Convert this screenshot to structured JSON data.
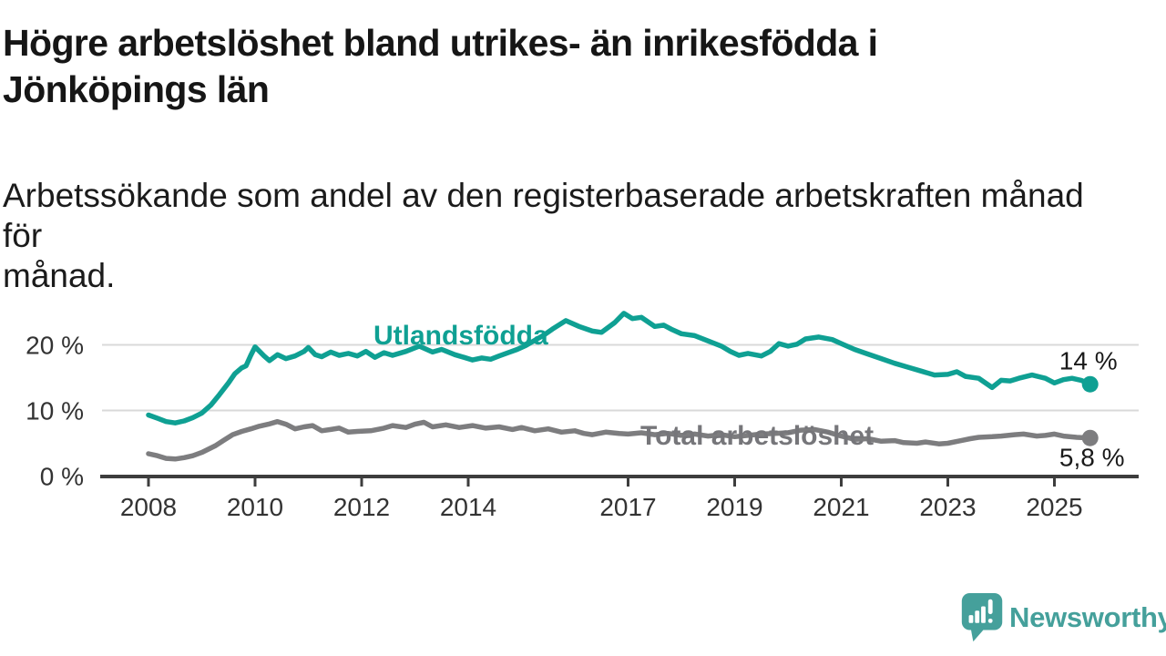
{
  "header": {
    "title_lines": [
      "Högre arbetslöshet bland utrikes- än inrikesfödda i",
      "Jönköpings län"
    ],
    "subtitle_lines": [
      "Arbetssökande som andel av den registerbaserade arbetskraften månad för",
      "månad."
    ]
  },
  "footer": {
    "brand": "Newsworthy",
    "brand_color": "#45a09b"
  },
  "chart_data": {
    "type": "line",
    "unit": "%",
    "grid": "horizontal",
    "x_axis": {
      "range": [
        2008,
        2025.67
      ],
      "ticks": [
        {
          "value": 2008,
          "label": "2008"
        },
        {
          "value": 2010,
          "label": "2010"
        },
        {
          "value": 2012,
          "label": "2012"
        },
        {
          "value": 2014,
          "label": "2014"
        },
        {
          "value": 2017,
          "label": "2017"
        },
        {
          "value": 2019,
          "label": "2019"
        },
        {
          "value": 2021,
          "label": "2021"
        },
        {
          "value": 2023,
          "label": "2023"
        },
        {
          "value": 2025,
          "label": "2025"
        }
      ]
    },
    "y_axis": {
      "range": [
        0,
        26
      ],
      "ticks": [
        {
          "value": 0,
          "label": "0 %"
        },
        {
          "value": 10,
          "label": "10 %"
        },
        {
          "value": 20,
          "label": "20 %"
        }
      ]
    },
    "series": [
      {
        "id": "utlandsfodda",
        "name": "Utlandsfödda",
        "color": "#0fa093",
        "end_value": 14.0,
        "end_label": "14 %",
        "end_label_position": "above",
        "points": [
          [
            2008.0,
            9.3
          ],
          [
            2008.17,
            8.8
          ],
          [
            2008.33,
            8.3
          ],
          [
            2008.5,
            8.1
          ],
          [
            2008.67,
            8.4
          ],
          [
            2008.83,
            8.9
          ],
          [
            2009.0,
            9.6
          ],
          [
            2009.17,
            10.8
          ],
          [
            2009.33,
            12.4
          ],
          [
            2009.5,
            14.2
          ],
          [
            2009.62,
            15.6
          ],
          [
            2009.75,
            16.5
          ],
          [
            2009.83,
            16.8
          ],
          [
            2009.92,
            18.4
          ],
          [
            2010.0,
            19.7
          ],
          [
            2010.17,
            18.3
          ],
          [
            2010.27,
            17.6
          ],
          [
            2010.42,
            18.5
          ],
          [
            2010.58,
            17.9
          ],
          [
            2010.75,
            18.3
          ],
          [
            2010.92,
            19.0
          ],
          [
            2011.0,
            19.6
          ],
          [
            2011.13,
            18.5
          ],
          [
            2011.25,
            18.2
          ],
          [
            2011.42,
            18.9
          ],
          [
            2011.58,
            18.4
          ],
          [
            2011.75,
            18.7
          ],
          [
            2011.92,
            18.3
          ],
          [
            2012.08,
            19.0
          ],
          [
            2012.25,
            18.1
          ],
          [
            2012.42,
            18.8
          ],
          [
            2012.58,
            18.4
          ],
          [
            2012.83,
            19.0
          ],
          [
            2013.08,
            19.8
          ],
          [
            2013.33,
            18.9
          ],
          [
            2013.5,
            19.3
          ],
          [
            2013.75,
            18.5
          ],
          [
            2013.92,
            18.1
          ],
          [
            2014.08,
            17.7
          ],
          [
            2014.25,
            18.0
          ],
          [
            2014.42,
            17.8
          ],
          [
            2014.58,
            18.3
          ],
          [
            2014.75,
            18.8
          ],
          [
            2014.92,
            19.3
          ],
          [
            2015.08,
            19.9
          ],
          [
            2015.25,
            20.7
          ],
          [
            2015.42,
            21.5
          ],
          [
            2015.58,
            22.4
          ],
          [
            2015.83,
            23.7
          ],
          [
            2016.08,
            22.8
          ],
          [
            2016.33,
            22.1
          ],
          [
            2016.5,
            21.9
          ],
          [
            2016.75,
            23.4
          ],
          [
            2016.92,
            24.8
          ],
          [
            2017.08,
            24.0
          ],
          [
            2017.25,
            24.2
          ],
          [
            2017.5,
            22.8
          ],
          [
            2017.67,
            23.0
          ],
          [
            2017.83,
            22.3
          ],
          [
            2018.0,
            21.7
          ],
          [
            2018.25,
            21.4
          ],
          [
            2018.5,
            20.6
          ],
          [
            2018.75,
            19.8
          ],
          [
            2018.92,
            19.0
          ],
          [
            2019.08,
            18.4
          ],
          [
            2019.25,
            18.7
          ],
          [
            2019.5,
            18.3
          ],
          [
            2019.67,
            19.0
          ],
          [
            2019.83,
            20.2
          ],
          [
            2020.0,
            19.8
          ],
          [
            2020.17,
            20.1
          ],
          [
            2020.33,
            20.9
          ],
          [
            2020.58,
            21.2
          ],
          [
            2020.83,
            20.8
          ],
          [
            2021.0,
            20.2
          ],
          [
            2021.25,
            19.3
          ],
          [
            2021.5,
            18.6
          ],
          [
            2021.75,
            17.9
          ],
          [
            2022.0,
            17.2
          ],
          [
            2022.25,
            16.6
          ],
          [
            2022.5,
            16.0
          ],
          [
            2022.75,
            15.4
          ],
          [
            2023.0,
            15.5
          ],
          [
            2023.17,
            15.9
          ],
          [
            2023.33,
            15.2
          ],
          [
            2023.58,
            14.9
          ],
          [
            2023.83,
            13.5
          ],
          [
            2024.0,
            14.6
          ],
          [
            2024.17,
            14.5
          ],
          [
            2024.33,
            14.9
          ],
          [
            2024.58,
            15.4
          ],
          [
            2024.83,
            14.9
          ],
          [
            2025.0,
            14.2
          ],
          [
            2025.17,
            14.7
          ],
          [
            2025.33,
            14.9
          ],
          [
            2025.5,
            14.6
          ],
          [
            2025.67,
            14.0
          ]
        ]
      },
      {
        "id": "total-arbetsloshet",
        "name": "Total arbetslöshet",
        "color": "#7d7d7f",
        "end_value": 5.8,
        "end_label": "5,8 %",
        "end_label_position": "below",
        "points": [
          [
            2008.0,
            3.4
          ],
          [
            2008.17,
            3.1
          ],
          [
            2008.33,
            2.7
          ],
          [
            2008.5,
            2.6
          ],
          [
            2008.67,
            2.8
          ],
          [
            2008.83,
            3.1
          ],
          [
            2009.0,
            3.6
          ],
          [
            2009.25,
            4.6
          ],
          [
            2009.42,
            5.5
          ],
          [
            2009.58,
            6.3
          ],
          [
            2009.75,
            6.8
          ],
          [
            2009.92,
            7.2
          ],
          [
            2010.08,
            7.6
          ],
          [
            2010.25,
            7.9
          ],
          [
            2010.42,
            8.3
          ],
          [
            2010.58,
            7.9
          ],
          [
            2010.75,
            7.2
          ],
          [
            2010.92,
            7.5
          ],
          [
            2011.08,
            7.7
          ],
          [
            2011.25,
            6.9
          ],
          [
            2011.42,
            7.1
          ],
          [
            2011.58,
            7.3
          ],
          [
            2011.75,
            6.7
          ],
          [
            2011.92,
            6.8
          ],
          [
            2012.17,
            6.9
          ],
          [
            2012.42,
            7.3
          ],
          [
            2012.58,
            7.7
          ],
          [
            2012.83,
            7.4
          ],
          [
            2013.0,
            7.9
          ],
          [
            2013.17,
            8.2
          ],
          [
            2013.33,
            7.5
          ],
          [
            2013.58,
            7.8
          ],
          [
            2013.83,
            7.4
          ],
          [
            2014.08,
            7.7
          ],
          [
            2014.33,
            7.3
          ],
          [
            2014.58,
            7.5
          ],
          [
            2014.83,
            7.1
          ],
          [
            2015.0,
            7.4
          ],
          [
            2015.25,
            6.9
          ],
          [
            2015.5,
            7.2
          ],
          [
            2015.75,
            6.7
          ],
          [
            2016.0,
            6.9
          ],
          [
            2016.17,
            6.5
          ],
          [
            2016.33,
            6.3
          ],
          [
            2016.58,
            6.7
          ],
          [
            2016.83,
            6.5
          ],
          [
            2017.0,
            6.4
          ],
          [
            2017.25,
            6.6
          ],
          [
            2017.5,
            6.3
          ],
          [
            2017.75,
            6.5
          ],
          [
            2018.0,
            6.2
          ],
          [
            2018.25,
            6.4
          ],
          [
            2018.5,
            6.1
          ],
          [
            2018.75,
            6.3
          ],
          [
            2019.0,
            6.0
          ],
          [
            2019.25,
            6.2
          ],
          [
            2019.5,
            6.4
          ],
          [
            2019.75,
            6.5
          ],
          [
            2020.0,
            6.6
          ],
          [
            2020.25,
            7.0
          ],
          [
            2020.5,
            7.1
          ],
          [
            2020.75,
            6.7
          ],
          [
            2021.0,
            6.1
          ],
          [
            2021.25,
            5.6
          ],
          [
            2021.5,
            5.7
          ],
          [
            2021.75,
            5.3
          ],
          [
            2022.0,
            5.4
          ],
          [
            2022.17,
            5.1
          ],
          [
            2022.42,
            5.0
          ],
          [
            2022.58,
            5.2
          ],
          [
            2022.83,
            4.9
          ],
          [
            2023.0,
            5.0
          ],
          [
            2023.25,
            5.4
          ],
          [
            2023.42,
            5.7
          ],
          [
            2023.58,
            5.9
          ],
          [
            2023.83,
            6.0
          ],
          [
            2024.0,
            6.1
          ],
          [
            2024.25,
            6.3
          ],
          [
            2024.42,
            6.4
          ],
          [
            2024.67,
            6.1
          ],
          [
            2024.83,
            6.2
          ],
          [
            2025.0,
            6.4
          ],
          [
            2025.17,
            6.1
          ],
          [
            2025.42,
            5.9
          ],
          [
            2025.67,
            5.8
          ]
        ]
      }
    ]
  }
}
